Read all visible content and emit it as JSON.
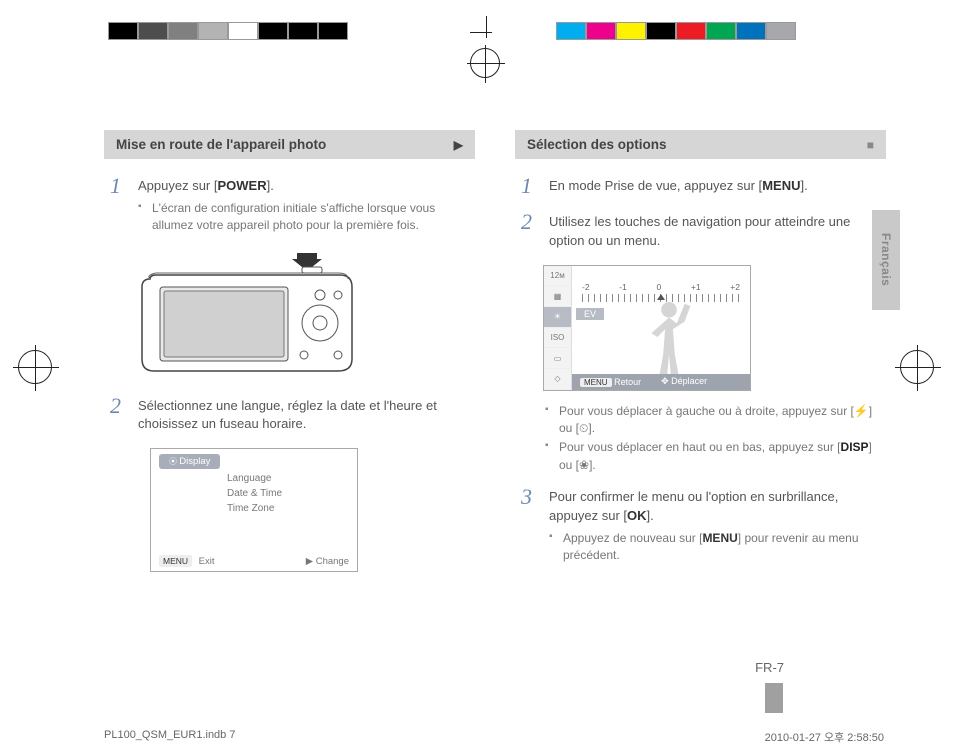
{
  "printer_bars": {
    "left_colors": [
      "#000000",
      "#4d4d4d",
      "#808080",
      "#b3b3b3",
      "#ffffff",
      "#000000",
      "#000000",
      "#000000"
    ],
    "right_colors": [
      "#00aeef",
      "#ec008c",
      "#fff200",
      "#000000",
      "#ed1c24",
      "#00a651",
      "#0072bc",
      "#a6a8ab"
    ]
  },
  "headings": {
    "left": "Mise en route de l'appareil photo",
    "right": "Sélection des options",
    "left_marker": "▶",
    "right_marker": "■"
  },
  "left_col": {
    "step1_lead_a": "Appuyez sur [",
    "step1_power": "POWER",
    "step1_lead_b": "].",
    "step1_bullet": "L'écran de configuration initiale s'affiche lorsque vous allumez votre appareil photo pour la première fois.",
    "step2": "Sélectionnez une langue, réglez la date et l'heure et choisissez un fuseau horaire.",
    "display_box": {
      "chip": "Display",
      "items": [
        "Language",
        "Date & Time",
        "Time Zone"
      ],
      "foot_left_tag": "MENU",
      "foot_left": "Exit",
      "foot_right": "▶   Change"
    }
  },
  "right_col": {
    "step1_a": "En mode Prise de vue, appuyez sur [",
    "step1_menu": "MENU",
    "step1_b": "].",
    "step2": "Utilisez les touches de navigation pour atteindre une option ou un menu.",
    "ev_screen": {
      "labels": [
        "-2",
        "-1",
        "0",
        "+1",
        "+2"
      ],
      "ev": "EV",
      "foot_tag": "MENU",
      "foot_left": "Retour",
      "foot_right": "Déplacer"
    },
    "bullet1": "Pour vous déplacer à gauche ou à droite, appuyez sur [⚡] ou [⏲].",
    "bullet2_a": "Pour vous déplacer en haut ou en bas, appuyez sur [",
    "bullet2_disp": "DISP",
    "bullet2_b": "] ou [❀].",
    "step3_a": "Pour confirmer le menu ou l'option en surbrillance, appuyez sur [",
    "step3_ok": "OK",
    "step3_b": "].",
    "step3_bullet_a": "Appuyez de nouveau sur [",
    "step3_bullet_menu": "MENU",
    "step3_bullet_b": "] pour revenir au menu précédent."
  },
  "page_number": "FR-7",
  "language_tab": "Français",
  "footer": {
    "left": "PL100_QSM_EUR1.indb   7",
    "right": "2010-01-27   오후 2:58:50"
  }
}
